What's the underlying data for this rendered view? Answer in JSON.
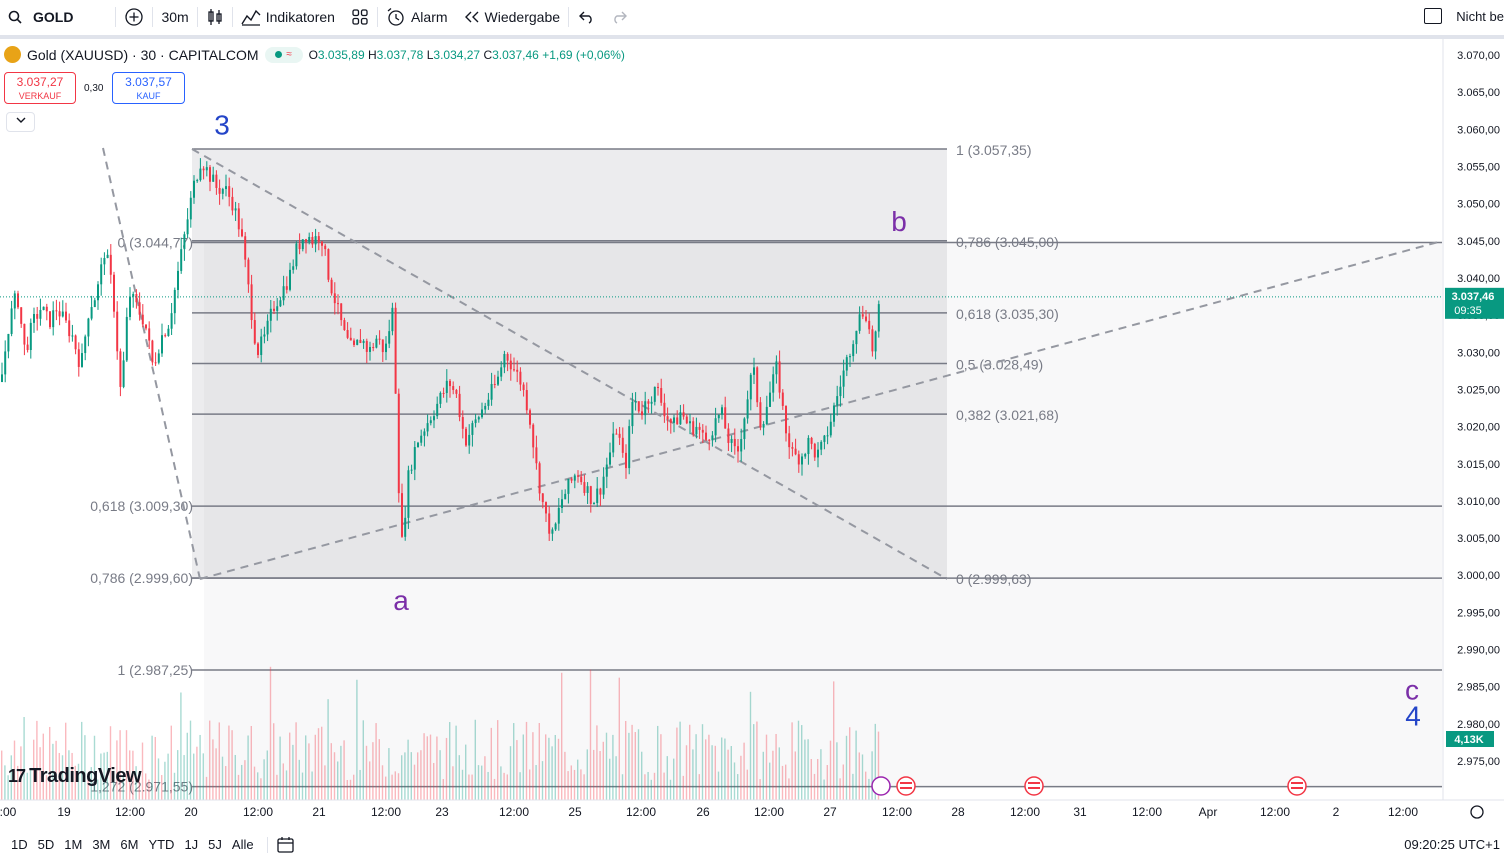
{
  "toolbar": {
    "symbol": "GOLD",
    "interval": "30m",
    "indicators": "Indikatoren",
    "alert": "Alarm",
    "replay": "Wiedergabe",
    "right_label": "Nicht be"
  },
  "legend": {
    "title": "Gold (XAUUSD) · 30 · CAPITALCOM",
    "open_label": "O",
    "open": "3.035,89",
    "high_label": "H",
    "high": "3.037,78",
    "low_label": "L",
    "low": "3.034,27",
    "close_label": "C",
    "close": "3.037,46",
    "change": "+1,69 (+0,06%)"
  },
  "quotes": {
    "sell_price": "3.037,27",
    "sell_label": "VERKAUF",
    "spread": "0,30",
    "buy_price": "3.037,57",
    "buy_label": "KAUF"
  },
  "bottom": {
    "ranges": [
      "1D",
      "5D",
      "1M",
      "3M",
      "6M",
      "YTD",
      "1J",
      "5J",
      "Alle"
    ],
    "clock": "09:20:25 UTC+1"
  },
  "brand": "TradingView",
  "colors": {
    "up": "#089981",
    "down": "#f23645",
    "wave_blue": "#2445c8",
    "wave_purple": "#7b2fa8",
    "fib": "#787b86",
    "price_tag": "#089981"
  },
  "chart_data": {
    "type": "candlestick",
    "ylim": [
      2970,
      3072
    ],
    "y_ticks": [
      "3.070,00",
      "3.065,00",
      "3.060,00",
      "3.055,00",
      "3.050,00",
      "3.045,00",
      "3.040,00",
      "3.035,00",
      "3.030,00",
      "3.025,00",
      "3.020,00",
      "3.015,00",
      "3.010,00",
      "3.005,00",
      "3.000,00",
      "2.995,00",
      "2.990,00",
      "2.985,00",
      "2.980,00",
      "2.975,00"
    ],
    "x_ticks": [
      ":00",
      "19",
      "12:00",
      "20",
      "12:00",
      "21",
      "12:00",
      "23",
      "12:00",
      "25",
      "12:00",
      "26",
      "12:00",
      "27",
      "12:00",
      "28",
      "12:00",
      "31",
      "12:00",
      "Apr",
      "12:00",
      "2",
      "12:00"
    ],
    "last_price": "3.037,46",
    "countdown": "09:35",
    "volume_label": "4,13K",
    "fib_left": [
      {
        "label": "0 (3.044,77)",
        "price": 3044.77
      },
      {
        "label": "0,618 (3.009,30)",
        "price": 3009.3
      },
      {
        "label": "0,786 (2.999,60)",
        "price": 2999.6
      },
      {
        "label": "1 (2.987,25)",
        "price": 2987.25
      },
      {
        "label": "1,272 (2.971,55)",
        "price": 2971.55
      }
    ],
    "fib_right": [
      {
        "label": "1 (3.057,35)",
        "price": 3057.35
      },
      {
        "label": "0,786 (3.045,00)",
        "price": 3045.0
      },
      {
        "label": "0,618 (3.035,30)",
        "price": 3035.3
      },
      {
        "label": "0,5 (3.028,49)",
        "price": 3028.49
      },
      {
        "label": "0,382 (3.021,68)",
        "price": 3021.68
      },
      {
        "label": "0 (2.999,63)",
        "price": 2999.63
      }
    ],
    "wave_labels": [
      {
        "text": "3",
        "price": 3060.5,
        "color": "blue"
      },
      {
        "text": "a",
        "price": 2996.5,
        "color": "purple"
      },
      {
        "text": "b",
        "price": 3047.5,
        "color": "purple"
      },
      {
        "text": "c",
        "price": 2984.5,
        "color": "purple"
      },
      {
        "text": "4",
        "price": 2981.0,
        "color": "blue"
      }
    ],
    "path": [
      [
        0,
        3026
      ],
      [
        8,
        3034
      ],
      [
        16,
        3038
      ],
      [
        24,
        3030
      ],
      [
        32,
        3034
      ],
      [
        40,
        3036
      ],
      [
        48,
        3034
      ],
      [
        56,
        3036
      ],
      [
        64,
        3034
      ],
      [
        72,
        3032
      ],
      [
        80,
        3028
      ],
      [
        88,
        3036
      ],
      [
        96,
        3038
      ],
      [
        104,
        3044
      ],
      [
        112,
        3038
      ],
      [
        120,
        3024
      ],
      [
        128,
        3038
      ],
      [
        136,
        3036
      ],
      [
        144,
        3034
      ],
      [
        152,
        3028
      ],
      [
        160,
        3032
      ],
      [
        168,
        3034
      ],
      [
        176,
        3040
      ],
      [
        184,
        3046
      ],
      [
        192,
        3052
      ],
      [
        200,
        3056
      ],
      [
        208,
        3054
      ],
      [
        216,
        3052
      ],
      [
        224,
        3052
      ],
      [
        232,
        3050
      ],
      [
        240,
        3046
      ],
      [
        248,
        3038
      ],
      [
        256,
        3030
      ],
      [
        264,
        3032
      ],
      [
        272,
        3036
      ],
      [
        280,
        3038
      ],
      [
        288,
        3040
      ],
      [
        296,
        3044
      ],
      [
        304,
        3046
      ],
      [
        312,
        3045
      ],
      [
        320,
        3046
      ],
      [
        328,
        3040
      ],
      [
        336,
        3036
      ],
      [
        344,
        3032
      ],
      [
        352,
        3030
      ],
      [
        360,
        3032
      ],
      [
        368,
        3030
      ],
      [
        376,
        3032
      ],
      [
        384,
        3030
      ],
      [
        392,
        3036
      ],
      [
        400,
        3003
      ],
      [
        408,
        3014
      ],
      [
        416,
        3018
      ],
      [
        424,
        3020
      ],
      [
        432,
        3022
      ],
      [
        440,
        3024
      ],
      [
        448,
        3026
      ],
      [
        456,
        3024
      ],
      [
        464,
        3018
      ],
      [
        472,
        3020
      ],
      [
        480,
        3022
      ],
      [
        488,
        3024
      ],
      [
        496,
        3026
      ],
      [
        504,
        3030
      ],
      [
        512,
        3028
      ],
      [
        520,
        3026
      ],
      [
        528,
        3022
      ],
      [
        536,
        3014
      ],
      [
        544,
        3008
      ],
      [
        552,
        3005
      ],
      [
        560,
        3010
      ],
      [
        568,
        3012
      ],
      [
        576,
        3014
      ],
      [
        584,
        3012
      ],
      [
        592,
        3010
      ],
      [
        600,
        3012
      ],
      [
        608,
        3016
      ],
      [
        616,
        3020
      ],
      [
        624,
        3014
      ],
      [
        632,
        3024
      ],
      [
        640,
        3022
      ],
      [
        648,
        3024
      ],
      [
        656,
        3025
      ],
      [
        664,
        3022
      ],
      [
        672,
        3020
      ],
      [
        680,
        3022
      ],
      [
        688,
        3020
      ],
      [
        696,
        3020
      ],
      [
        704,
        3018
      ],
      [
        712,
        3020
      ],
      [
        720,
        3022
      ],
      [
        728,
        3018
      ],
      [
        736,
        3016
      ],
      [
        744,
        3022
      ],
      [
        752,
        3028
      ],
      [
        760,
        3020
      ],
      [
        768,
        3024
      ],
      [
        776,
        3028
      ],
      [
        784,
        3020
      ],
      [
        792,
        3016
      ],
      [
        800,
        3016
      ],
      [
        808,
        3018
      ],
      [
        816,
        3016
      ],
      [
        824,
        3018
      ],
      [
        832,
        3022
      ],
      [
        840,
        3026
      ],
      [
        848,
        3030
      ],
      [
        856,
        3034
      ],
      [
        864,
        3036
      ],
      [
        872,
        3030
      ],
      [
        880,
        3037.46
      ]
    ]
  }
}
